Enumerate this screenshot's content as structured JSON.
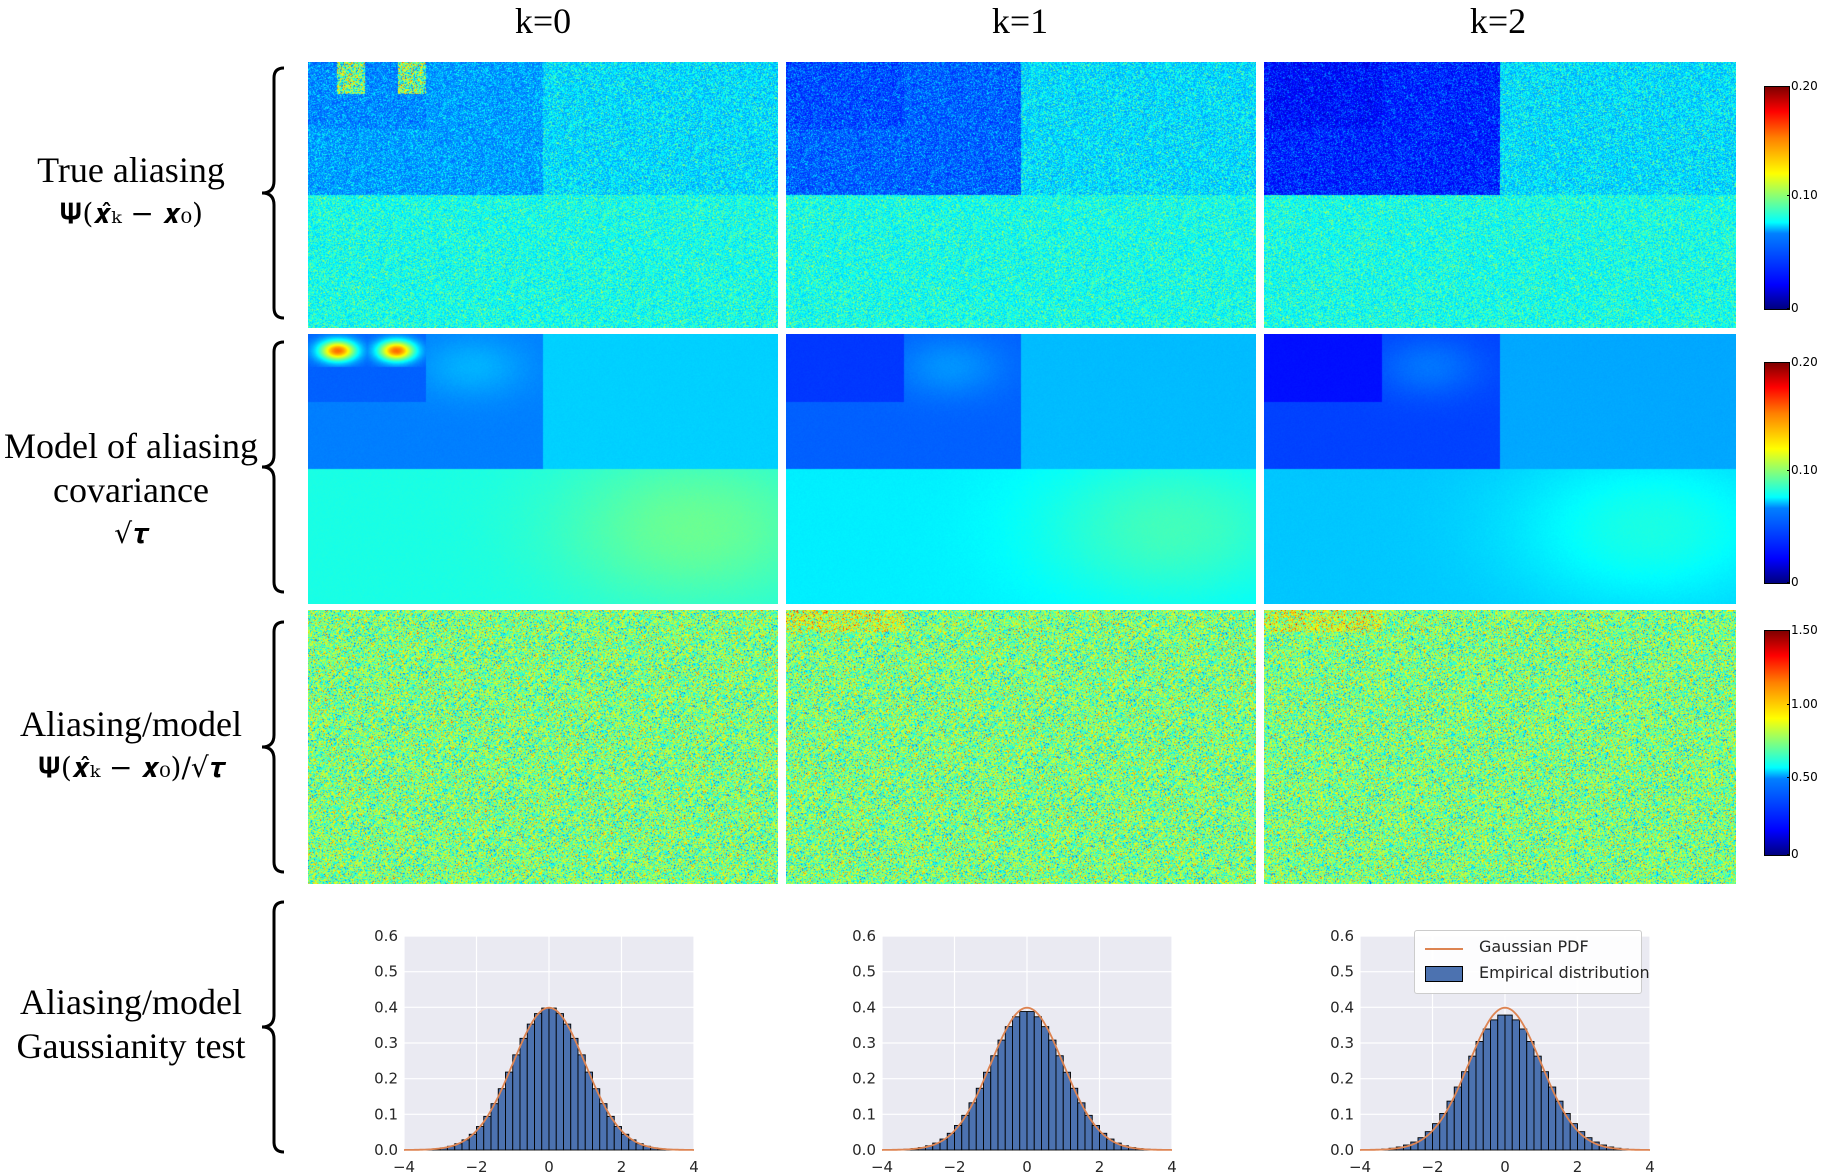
{
  "columns": [
    "k=0",
    "k=1",
    "k=2"
  ],
  "rows": [
    {
      "line1": "True aliasing",
      "line2": "",
      "formula": "𝚿(𝒙̂ₖ − 𝒙₀)"
    },
    {
      "line1": "Model of aliasing",
      "line2": "covariance",
      "formula": "√𝝉"
    },
    {
      "line1": "Aliasing/model",
      "line2": "",
      "formula": "𝚿(𝒙̂ₖ − 𝒙₀)/√𝝉"
    },
    {
      "line1": "Aliasing/model",
      "line2": "Gaussianity test",
      "formula": ""
    }
  ],
  "colorbars": [
    {
      "max_label": "0.20",
      "mid_label": "0.10",
      "min_label": "0"
    },
    {
      "max_label": "0.20",
      "mid_label": "0.10",
      "min_label": "0"
    },
    {
      "max_label": "1.50",
      "mid_label": "1.00",
      "low_label": "0.50",
      "min_label": "0"
    }
  ],
  "legend": {
    "line_label": "Gaussian PDF",
    "bar_label": "Empirical distribution"
  },
  "colors": {
    "bar": "#4c72b0",
    "pdf_line": "#dd8452",
    "plot_bg": "#eaeaf2",
    "grid": "#ffffff"
  },
  "chart_data": [
    {
      "type": "bar",
      "title": "k=0",
      "x_ticks": [
        "−4",
        "−2",
        "0",
        "2",
        "4"
      ],
      "y_ticks": [
        "0.0",
        "0.1",
        "0.2",
        "0.3",
        "0.4",
        "0.5",
        "0.6"
      ],
      "xlim": [
        -4,
        4
      ],
      "ylim": [
        0,
        0.6
      ],
      "series": [
        {
          "name": "Empirical distribution",
          "peak": 0.4,
          "sigma": 1.0
        },
        {
          "name": "Gaussian PDF",
          "peak": 0.399,
          "sigma": 1.0
        }
      ]
    },
    {
      "type": "bar",
      "title": "k=1",
      "x_ticks": [
        "−4",
        "−2",
        "0",
        "2",
        "4"
      ],
      "y_ticks": [
        "0.0",
        "0.1",
        "0.2",
        "0.3",
        "0.4",
        "0.5",
        "0.6"
      ],
      "xlim": [
        -4,
        4
      ],
      "ylim": [
        0,
        0.6
      ],
      "series": [
        {
          "name": "Empirical distribution",
          "peak": 0.39,
          "sigma": 1.02
        },
        {
          "name": "Gaussian PDF",
          "peak": 0.399,
          "sigma": 1.0
        }
      ]
    },
    {
      "type": "bar",
      "title": "k=2",
      "x_ticks": [
        "−4",
        "−2",
        "0",
        "2",
        "4"
      ],
      "y_ticks": [
        "0.0",
        "0.1",
        "0.2",
        "0.3",
        "0.4",
        "0.5",
        "0.6"
      ],
      "xlim": [
        -4,
        4
      ],
      "ylim": [
        0,
        0.6
      ],
      "series": [
        {
          "name": "Empirical distribution",
          "peak": 0.38,
          "sigma": 1.05
        },
        {
          "name": "Gaussian PDF",
          "peak": 0.399,
          "sigma": 1.0
        }
      ]
    }
  ]
}
